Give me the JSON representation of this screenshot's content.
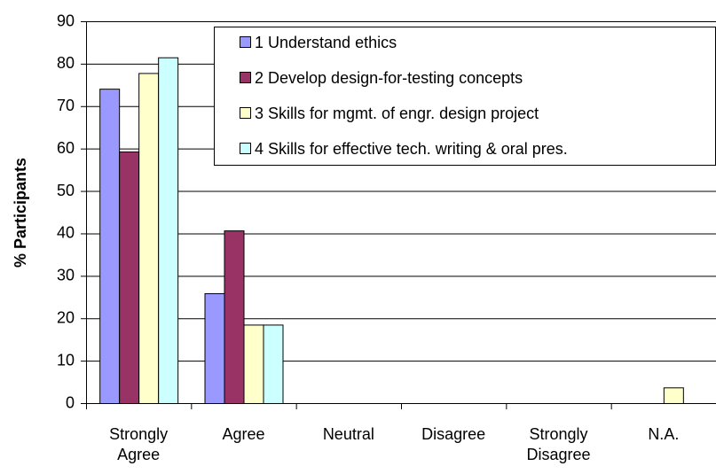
{
  "chart_data": {
    "type": "bar",
    "y_label": "% Participants",
    "categories": [
      "Strongly Agree",
      "Agree",
      "Neutral",
      "Disagree",
      "Strongly Disagree",
      "N.A."
    ],
    "series": [
      {
        "name": "1 Understand ethics",
        "color": "#9999ff",
        "values": [
          74.1,
          25.9,
          0,
          0,
          0,
          0
        ]
      },
      {
        "name": "2 Develop design-for-testing concepts",
        "color": "#993366",
        "values": [
          59.3,
          40.7,
          0,
          0,
          0,
          0
        ]
      },
      {
        "name": "3 Skills for mgmt. of engr. design project",
        "color": "#ffffcc",
        "values": [
          77.8,
          18.5,
          0,
          0,
          0,
          3.7
        ]
      },
      {
        "name": "4 Skills for effective tech. writing & oral pres.",
        "color": "#ccffff",
        "values": [
          81.5,
          18.5,
          0,
          0,
          0,
          0
        ]
      }
    ],
    "ylim": [
      0,
      90
    ],
    "yticks": [
      0,
      10,
      20,
      30,
      40,
      50,
      60,
      70,
      80,
      90
    ],
    "grid": true,
    "legend": "upper right"
  }
}
